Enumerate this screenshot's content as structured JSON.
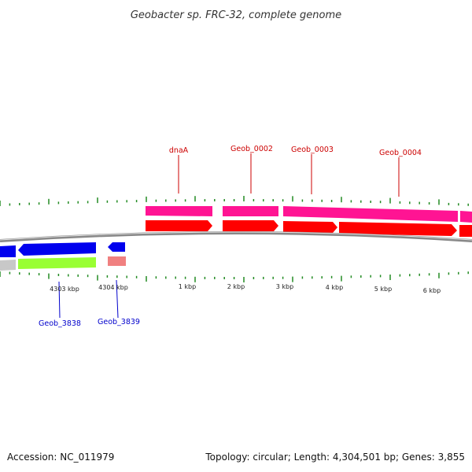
{
  "title": "Geobacter sp. FRC-32, complete genome",
  "colors": {
    "forward_cds": "#ff0000",
    "forward_gene": "#ff1493",
    "reverse_cds": "#0000ee",
    "reverse_gene_green": "#99ff33",
    "reverse_gene_pink": "#f08080",
    "reverse_gene_gray": "#c8c8c8",
    "backbone": "#888888",
    "ticks": "#228b22",
    "forward_label": "#cc0000",
    "reverse_label": "#0000cc"
  },
  "forward_labels": [
    "dnaA",
    "Geob_0002",
    "Geob_0003",
    "Geob_0004"
  ],
  "reverse_labels": [
    "Geob_3838",
    "Geob_3839"
  ],
  "tick_labels": [
    "4303 kbp",
    "4304 kbp",
    "1 kbp",
    "2 kbp",
    "3 kbp",
    "4 kbp",
    "5 kbp",
    "6 kbp"
  ],
  "footer": {
    "accession": "Accession: NC_011979",
    "summary": "Topology: circular; Length: 4,304,501 bp; Genes: 3,855"
  }
}
